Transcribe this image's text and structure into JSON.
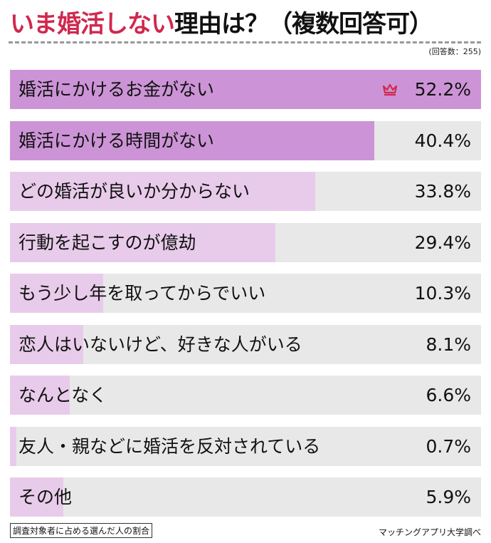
{
  "title": {
    "accent": "いま婚活しない",
    "rest": "理由は？（複数回答可）"
  },
  "respondents": "(回答数：255)",
  "colors": {
    "title_accent": "#d0284e",
    "bar_top": "#cc94d6",
    "bar_other": "#e8cbea",
    "track": "#e8e8e8",
    "crown": "#d0284e"
  },
  "chart_data": {
    "type": "bar",
    "orientation": "horizontal",
    "title": "いま婚活しない理由は？（複数回答可）",
    "unit": "%",
    "categories": [
      "婚活にかけるお金がない",
      "婚活にかける時間がない",
      "どの婚活が良いか分からない",
      "行動を起こすのが億劫",
      "もう少し年を取ってからでいい",
      "恋人はいないけど、好きな人がいる",
      "なんとなく",
      "友人・親などに婚活を反対されている",
      "その他"
    ],
    "values": [
      52.2,
      40.4,
      33.8,
      29.4,
      10.3,
      8.1,
      6.6,
      0.7,
      5.9
    ],
    "value_labels": [
      "52.2%",
      "40.4%",
      "33.8%",
      "29.4%",
      "10.3%",
      "8.1%",
      "6.6%",
      "0.7%",
      "5.9%"
    ],
    "highlight_top": 2,
    "top_icon": "crown-icon"
  },
  "footer": {
    "note": "調査対象者に占める選んだ人の割合",
    "source": "マッチングアプリ大学調べ"
  }
}
